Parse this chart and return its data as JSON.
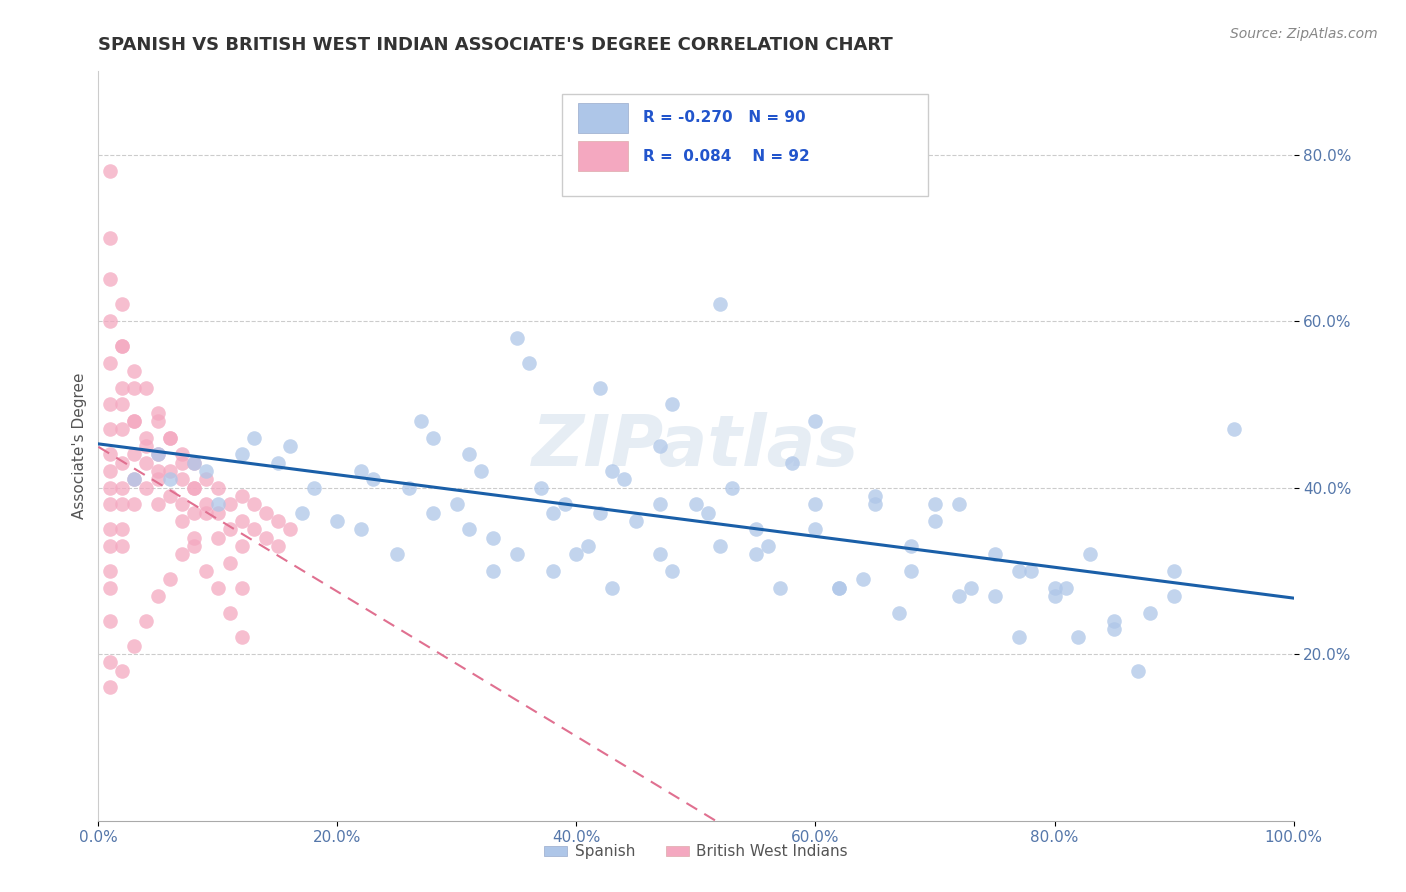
{
  "title": "SPANISH VS BRITISH WEST INDIAN ASSOCIATE'S DEGREE CORRELATION CHART",
  "source_text": "Source: ZipAtlas.com",
  "ylabel": "Associate's Degree",
  "xlim": [
    0.0,
    1.0
  ],
  "ylim": [
    0.0,
    0.9
  ],
  "xtick_labels": [
    "0.0%",
    "20.0%",
    "40.0%",
    "60.0%",
    "80.0%",
    "100.0%"
  ],
  "xtick_vals": [
    0.0,
    0.2,
    0.4,
    0.6,
    0.8,
    1.0
  ],
  "ytick_labels": [
    "20.0%",
    "40.0%",
    "60.0%",
    "80.0%"
  ],
  "ytick_vals": [
    0.2,
    0.4,
    0.6,
    0.8
  ],
  "legend_r_blue": "-0.270",
  "legend_n_blue": "90",
  "legend_r_pink": "0.084",
  "legend_n_pink": "92",
  "blue_color": "#aec6e8",
  "pink_color": "#f4a8c0",
  "blue_line_color": "#1a5fa8",
  "pink_line_color": "#e07090",
  "watermark": "ZIPatlas",
  "title_fontsize": 13,
  "blue_x": [
    0.42,
    0.27,
    0.35,
    0.22,
    0.47,
    0.52,
    0.44,
    0.38,
    0.31,
    0.6,
    0.55,
    0.58,
    0.65,
    0.7,
    0.48,
    0.53,
    0.41,
    0.33,
    0.28,
    0.36,
    0.62,
    0.68,
    0.75,
    0.8,
    0.85,
    0.9,
    0.72,
    0.78,
    0.83,
    0.88,
    0.15,
    0.18,
    0.12,
    0.09,
    0.06,
    0.1,
    0.2,
    0.25,
    0.3,
    0.05,
    0.08,
    0.13,
    0.17,
    0.22,
    0.26,
    0.31,
    0.35,
    0.39,
    0.43,
    0.47,
    0.51,
    0.56,
    0.6,
    0.64,
    0.68,
    0.73,
    0.77,
    0.81,
    0.5,
    0.45,
    0.4,
    0.55,
    0.6,
    0.65,
    0.7,
    0.75,
    0.8,
    0.85,
    0.9,
    0.95,
    0.32,
    0.37,
    0.42,
    0.47,
    0.52,
    0.57,
    0.62,
    0.67,
    0.72,
    0.77,
    0.82,
    0.87,
    0.23,
    0.28,
    0.33,
    0.38,
    0.43,
    0.48,
    0.03,
    0.16
  ],
  "blue_y": [
    0.52,
    0.48,
    0.58,
    0.42,
    0.45,
    0.62,
    0.41,
    0.37,
    0.44,
    0.38,
    0.35,
    0.43,
    0.38,
    0.36,
    0.5,
    0.4,
    0.33,
    0.3,
    0.46,
    0.55,
    0.28,
    0.33,
    0.27,
    0.28,
    0.24,
    0.27,
    0.38,
    0.3,
    0.32,
    0.25,
    0.43,
    0.4,
    0.44,
    0.42,
    0.41,
    0.38,
    0.36,
    0.32,
    0.38,
    0.44,
    0.43,
    0.46,
    0.37,
    0.35,
    0.4,
    0.35,
    0.32,
    0.38,
    0.42,
    0.38,
    0.37,
    0.33,
    0.35,
    0.29,
    0.3,
    0.28,
    0.3,
    0.28,
    0.38,
    0.36,
    0.32,
    0.32,
    0.48,
    0.39,
    0.38,
    0.32,
    0.27,
    0.23,
    0.3,
    0.47,
    0.42,
    0.4,
    0.37,
    0.32,
    0.33,
    0.28,
    0.28,
    0.25,
    0.27,
    0.22,
    0.22,
    0.18,
    0.41,
    0.37,
    0.34,
    0.3,
    0.28,
    0.3,
    0.41,
    0.45
  ],
  "pink_x": [
    0.01,
    0.01,
    0.01,
    0.01,
    0.01,
    0.01,
    0.01,
    0.01,
    0.01,
    0.01,
    0.01,
    0.01,
    0.01,
    0.01,
    0.01,
    0.02,
    0.02,
    0.02,
    0.02,
    0.02,
    0.02,
    0.02,
    0.02,
    0.02,
    0.03,
    0.03,
    0.03,
    0.03,
    0.03,
    0.04,
    0.04,
    0.04,
    0.05,
    0.05,
    0.05,
    0.05,
    0.06,
    0.06,
    0.07,
    0.07,
    0.07,
    0.08,
    0.08,
    0.08,
    0.09,
    0.09,
    0.1,
    0.1,
    0.11,
    0.11,
    0.12,
    0.12,
    0.12,
    0.13,
    0.13,
    0.14,
    0.14,
    0.15,
    0.15,
    0.16,
    0.01,
    0.01,
    0.02,
    0.02,
    0.03,
    0.03,
    0.04,
    0.04,
    0.05,
    0.05,
    0.06,
    0.06,
    0.07,
    0.07,
    0.08,
    0.08,
    0.09,
    0.09,
    0.1,
    0.1,
    0.11,
    0.11,
    0.12,
    0.12,
    0.01,
    0.02,
    0.03,
    0.04,
    0.05,
    0.06,
    0.07,
    0.08
  ],
  "pink_y": [
    0.78,
    0.7,
    0.65,
    0.6,
    0.55,
    0.5,
    0.47,
    0.44,
    0.42,
    0.4,
    0.38,
    0.35,
    0.33,
    0.3,
    0.28,
    0.62,
    0.57,
    0.52,
    0.47,
    0.43,
    0.4,
    0.38,
    0.35,
    0.33,
    0.52,
    0.48,
    0.44,
    0.41,
    0.38,
    0.46,
    0.43,
    0.4,
    0.48,
    0.44,
    0.41,
    0.38,
    0.46,
    0.42,
    0.44,
    0.41,
    0.38,
    0.43,
    0.4,
    0.37,
    0.41,
    0.38,
    0.4,
    0.37,
    0.38,
    0.35,
    0.39,
    0.36,
    0.33,
    0.38,
    0.35,
    0.37,
    0.34,
    0.36,
    0.33,
    0.35,
    0.24,
    0.19,
    0.57,
    0.5,
    0.54,
    0.48,
    0.52,
    0.45,
    0.49,
    0.42,
    0.46,
    0.39,
    0.43,
    0.36,
    0.4,
    0.33,
    0.37,
    0.3,
    0.34,
    0.28,
    0.31,
    0.25,
    0.28,
    0.22,
    0.16,
    0.18,
    0.21,
    0.24,
    0.27,
    0.29,
    0.32,
    0.34
  ]
}
